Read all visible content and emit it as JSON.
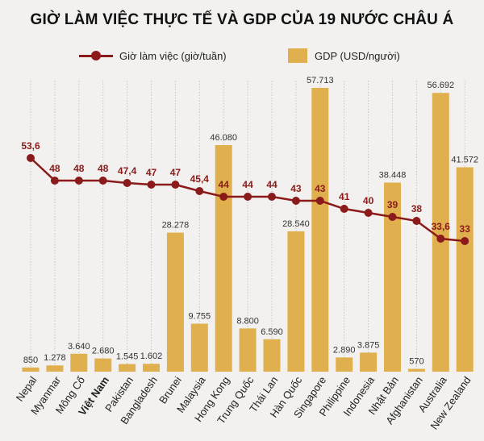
{
  "chart_data": {
    "type": "bar",
    "title": "GIỜ LÀM VIỆC THỰC TẾ VÀ GDP CỦA 19 NƯỚC CHÂU Á",
    "categories": [
      "Nepal",
      "Myanmar",
      "Mông Cổ",
      "Việt Nam",
      "Pakistan",
      "Bangladesh",
      "Brunei",
      "Malaysia",
      "Hong Kong",
      "Trung Quốc",
      "Thái Lan",
      "Hàn Quốc",
      "Singapore",
      "Philippine",
      "Indonesia",
      "Nhật Bản",
      "Afghanistan",
      "Australia",
      "New Zealand"
    ],
    "highlight_category": "Việt Nam",
    "series": [
      {
        "name": "Giờ làm việc (giờ/tuần)",
        "type": "line",
        "values": [
          53.6,
          48,
          48,
          48,
          47.4,
          47,
          47,
          45.4,
          44,
          44,
          44,
          43,
          43,
          41,
          40,
          39,
          38,
          33.6,
          33
        ],
        "labels": [
          "53,6",
          "48",
          "48",
          "48",
          "47,4",
          "47",
          "47",
          "45,4",
          "44",
          "44",
          "44",
          "43",
          "43",
          "41",
          "40",
          "39",
          "38",
          "33,6",
          "33"
        ]
      },
      {
        "name": "GDP (USD/người)",
        "type": "bar",
        "values": [
          850,
          1278,
          3640,
          2680,
          1545,
          1602,
          28278,
          9755,
          46080,
          8800,
          6590,
          28540,
          57713,
          2890,
          3875,
          38448,
          570,
          56692,
          41572
        ],
        "labels": [
          "850",
          "1.278",
          "3.640",
          "2.680",
          "1.545",
          "1.602",
          "28.278",
          "9.755",
          "46.080",
          "8.800",
          "6.590",
          "28.540",
          "57.713",
          "2.890",
          "3.875",
          "38.448",
          "570",
          "56.692",
          "41.572"
        ]
      }
    ],
    "colors": {
      "line": "#8b1a1a",
      "bar": "#e0b04f",
      "gridline": "#c8c6c2",
      "background": "#f2f1ef"
    },
    "legend_position": "top",
    "grid": "vertical dotted"
  }
}
